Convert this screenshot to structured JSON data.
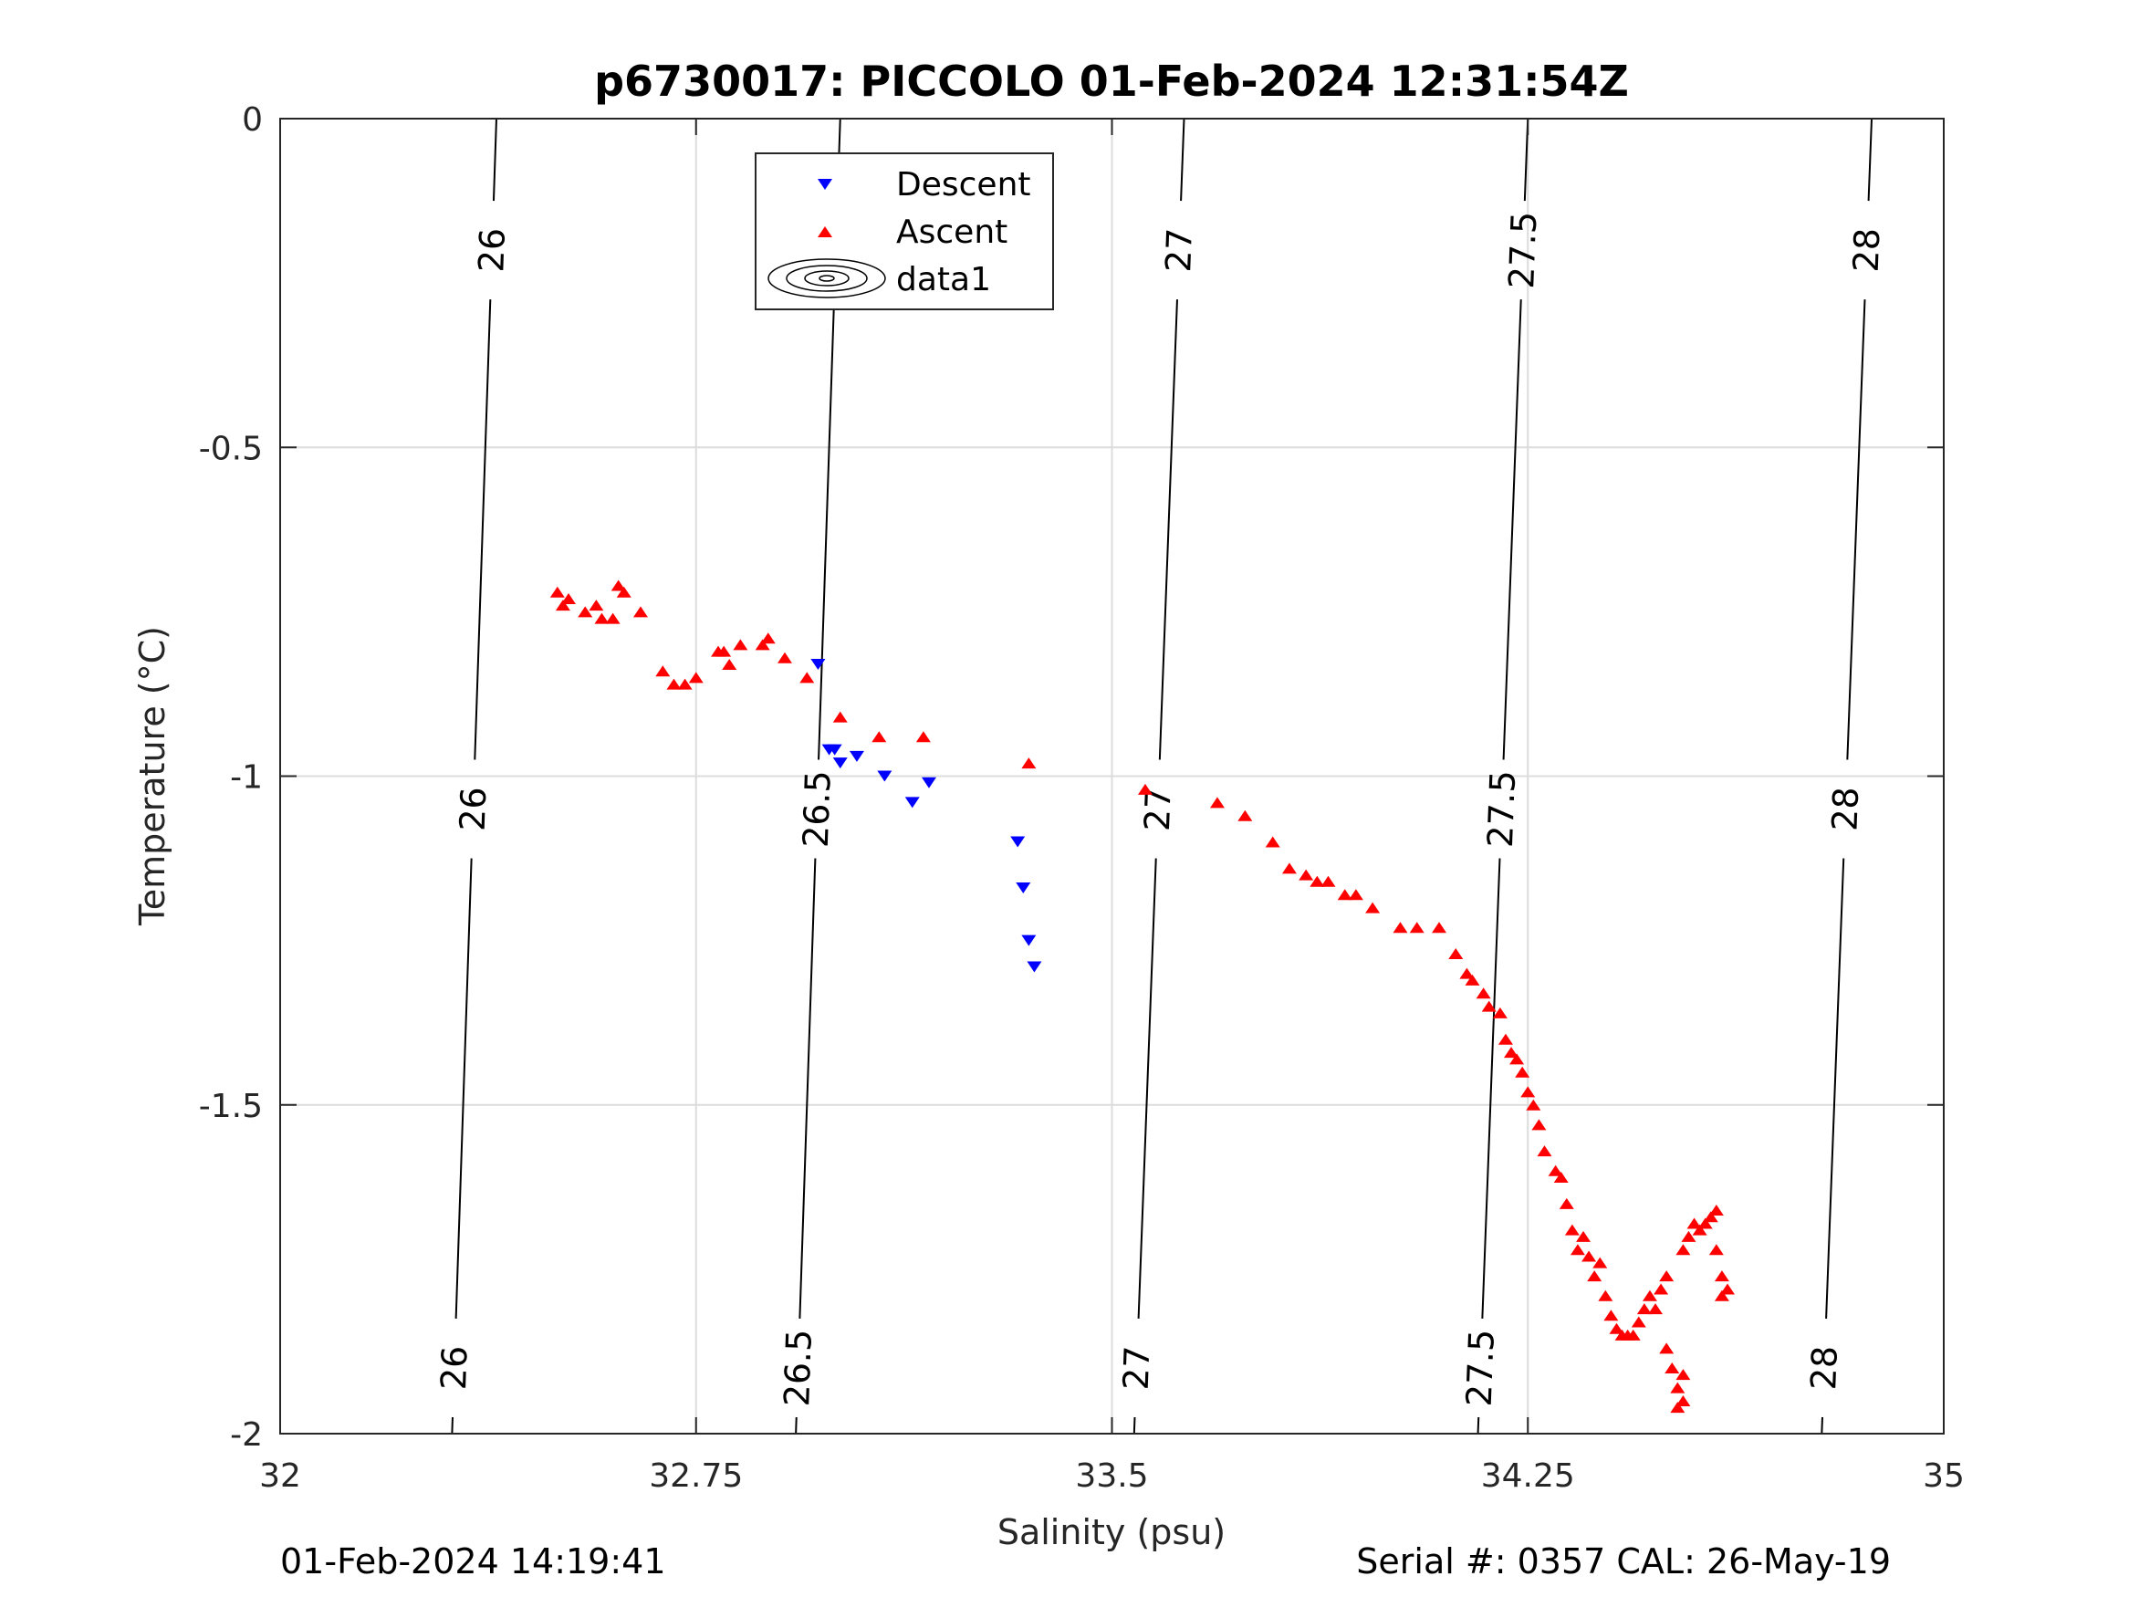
{
  "chart_data": {
    "type": "scatter",
    "title": "p6730017: PICCOLO 01-Feb-2024 12:31:54Z",
    "xlabel": "Salinity (psu)",
    "ylabel": "Temperature (°C)",
    "xlim": [
      32,
      35
    ],
    "ylim": [
      -2,
      0
    ],
    "xticks": [
      "32",
      "32.75",
      "33.5",
      "34.25",
      "35"
    ],
    "yticks": [
      "0",
      "-0.5",
      "-1",
      "-1.5",
      "-2"
    ],
    "grid": true,
    "legend_position": "top-center",
    "legend": [
      "Descent",
      "Ascent",
      "data1"
    ],
    "series": [
      {
        "name": "Descent",
        "marker": "triangle-down",
        "color": "#0000ff",
        "points": [
          [
            32.97,
            -0.83
          ],
          [
            32.99,
            -0.96
          ],
          [
            33.0,
            -0.96
          ],
          [
            33.01,
            -0.98
          ],
          [
            33.04,
            -0.97
          ],
          [
            33.09,
            -1.0
          ],
          [
            33.14,
            -1.04
          ],
          [
            33.17,
            -1.01
          ],
          [
            33.33,
            -1.1
          ],
          [
            33.34,
            -1.17
          ],
          [
            33.35,
            -1.25
          ],
          [
            33.36,
            -1.29
          ]
        ]
      },
      {
        "name": "Ascent",
        "marker": "triangle-up",
        "color": "#ff0000",
        "points": [
          [
            32.5,
            -0.72
          ],
          [
            32.51,
            -0.74
          ],
          [
            32.52,
            -0.73
          ],
          [
            32.55,
            -0.75
          ],
          [
            32.57,
            -0.74
          ],
          [
            32.58,
            -0.76
          ],
          [
            32.6,
            -0.76
          ],
          [
            32.61,
            -0.71
          ],
          [
            32.62,
            -0.72
          ],
          [
            32.65,
            -0.75
          ],
          [
            32.69,
            -0.84
          ],
          [
            32.71,
            -0.86
          ],
          [
            32.73,
            -0.86
          ],
          [
            32.75,
            -0.85
          ],
          [
            32.79,
            -0.81
          ],
          [
            32.8,
            -0.81
          ],
          [
            32.81,
            -0.83
          ],
          [
            32.83,
            -0.8
          ],
          [
            32.87,
            -0.8
          ],
          [
            32.88,
            -0.79
          ],
          [
            32.91,
            -0.82
          ],
          [
            32.95,
            -0.85
          ],
          [
            33.01,
            -0.91
          ],
          [
            33.08,
            -0.94
          ],
          [
            33.16,
            -0.94
          ],
          [
            33.35,
            -0.98
          ],
          [
            33.56,
            -1.02
          ],
          [
            33.69,
            -1.04
          ],
          [
            33.74,
            -1.06
          ],
          [
            33.79,
            -1.1
          ],
          [
            33.82,
            -1.14
          ],
          [
            33.85,
            -1.15
          ],
          [
            33.87,
            -1.16
          ],
          [
            33.89,
            -1.16
          ],
          [
            33.92,
            -1.18
          ],
          [
            33.94,
            -1.18
          ],
          [
            33.97,
            -1.2
          ],
          [
            34.02,
            -1.23
          ],
          [
            34.05,
            -1.23
          ],
          [
            34.09,
            -1.23
          ],
          [
            34.12,
            -1.27
          ],
          [
            34.14,
            -1.3
          ],
          [
            34.15,
            -1.31
          ],
          [
            34.17,
            -1.33
          ],
          [
            34.18,
            -1.35
          ],
          [
            34.2,
            -1.36
          ],
          [
            34.21,
            -1.4
          ],
          [
            34.22,
            -1.42
          ],
          [
            34.23,
            -1.43
          ],
          [
            34.24,
            -1.45
          ],
          [
            34.25,
            -1.48
          ],
          [
            34.26,
            -1.5
          ],
          [
            34.27,
            -1.53
          ],
          [
            34.28,
            -1.57
          ],
          [
            34.3,
            -1.6
          ],
          [
            34.31,
            -1.61
          ],
          [
            34.32,
            -1.65
          ],
          [
            34.33,
            -1.69
          ],
          [
            34.34,
            -1.72
          ],
          [
            34.35,
            -1.7
          ],
          [
            34.36,
            -1.73
          ],
          [
            34.37,
            -1.76
          ],
          [
            34.38,
            -1.74
          ],
          [
            34.39,
            -1.79
          ],
          [
            34.4,
            -1.82
          ],
          [
            34.41,
            -1.84
          ],
          [
            34.42,
            -1.85
          ],
          [
            34.43,
            -1.85
          ],
          [
            34.44,
            -1.85
          ],
          [
            34.45,
            -1.83
          ],
          [
            34.46,
            -1.81
          ],
          [
            34.47,
            -1.79
          ],
          [
            34.48,
            -1.81
          ],
          [
            34.49,
            -1.78
          ],
          [
            34.5,
            -1.76
          ],
          [
            34.5,
            -1.87
          ],
          [
            34.51,
            -1.9
          ],
          [
            34.52,
            -1.93
          ],
          [
            34.52,
            -1.96
          ],
          [
            34.53,
            -1.95
          ],
          [
            34.53,
            -1.91
          ],
          [
            34.53,
            -1.72
          ],
          [
            34.54,
            -1.7
          ],
          [
            34.55,
            -1.68
          ],
          [
            34.56,
            -1.69
          ],
          [
            34.57,
            -1.68
          ],
          [
            34.58,
            -1.67
          ],
          [
            34.59,
            -1.66
          ],
          [
            34.59,
            -1.72
          ],
          [
            34.6,
            -1.76
          ],
          [
            34.6,
            -1.79
          ],
          [
            34.61,
            -1.78
          ]
        ]
      }
    ],
    "isopycnals": {
      "labels": [
        "26",
        "26.5",
        "27",
        "27.5",
        "28"
      ],
      "lines": [
        {
          "label": "26",
          "s_top": 32.39,
          "s_bottom": 32.31
        },
        {
          "label": "26.5",
          "s_top": 33.01,
          "s_bottom": 32.93
        },
        {
          "label": "27",
          "s_top": 33.63,
          "s_bottom": 33.54
        },
        {
          "label": "27.5",
          "s_top": 34.25,
          "s_bottom": 34.16
        },
        {
          "label": "28",
          "s_top": 34.87,
          "s_bottom": 34.78
        }
      ]
    }
  },
  "footer": {
    "left": "01-Feb-2024 14:19:41",
    "right": "Serial #: 0357  CAL: 26-May-19"
  }
}
